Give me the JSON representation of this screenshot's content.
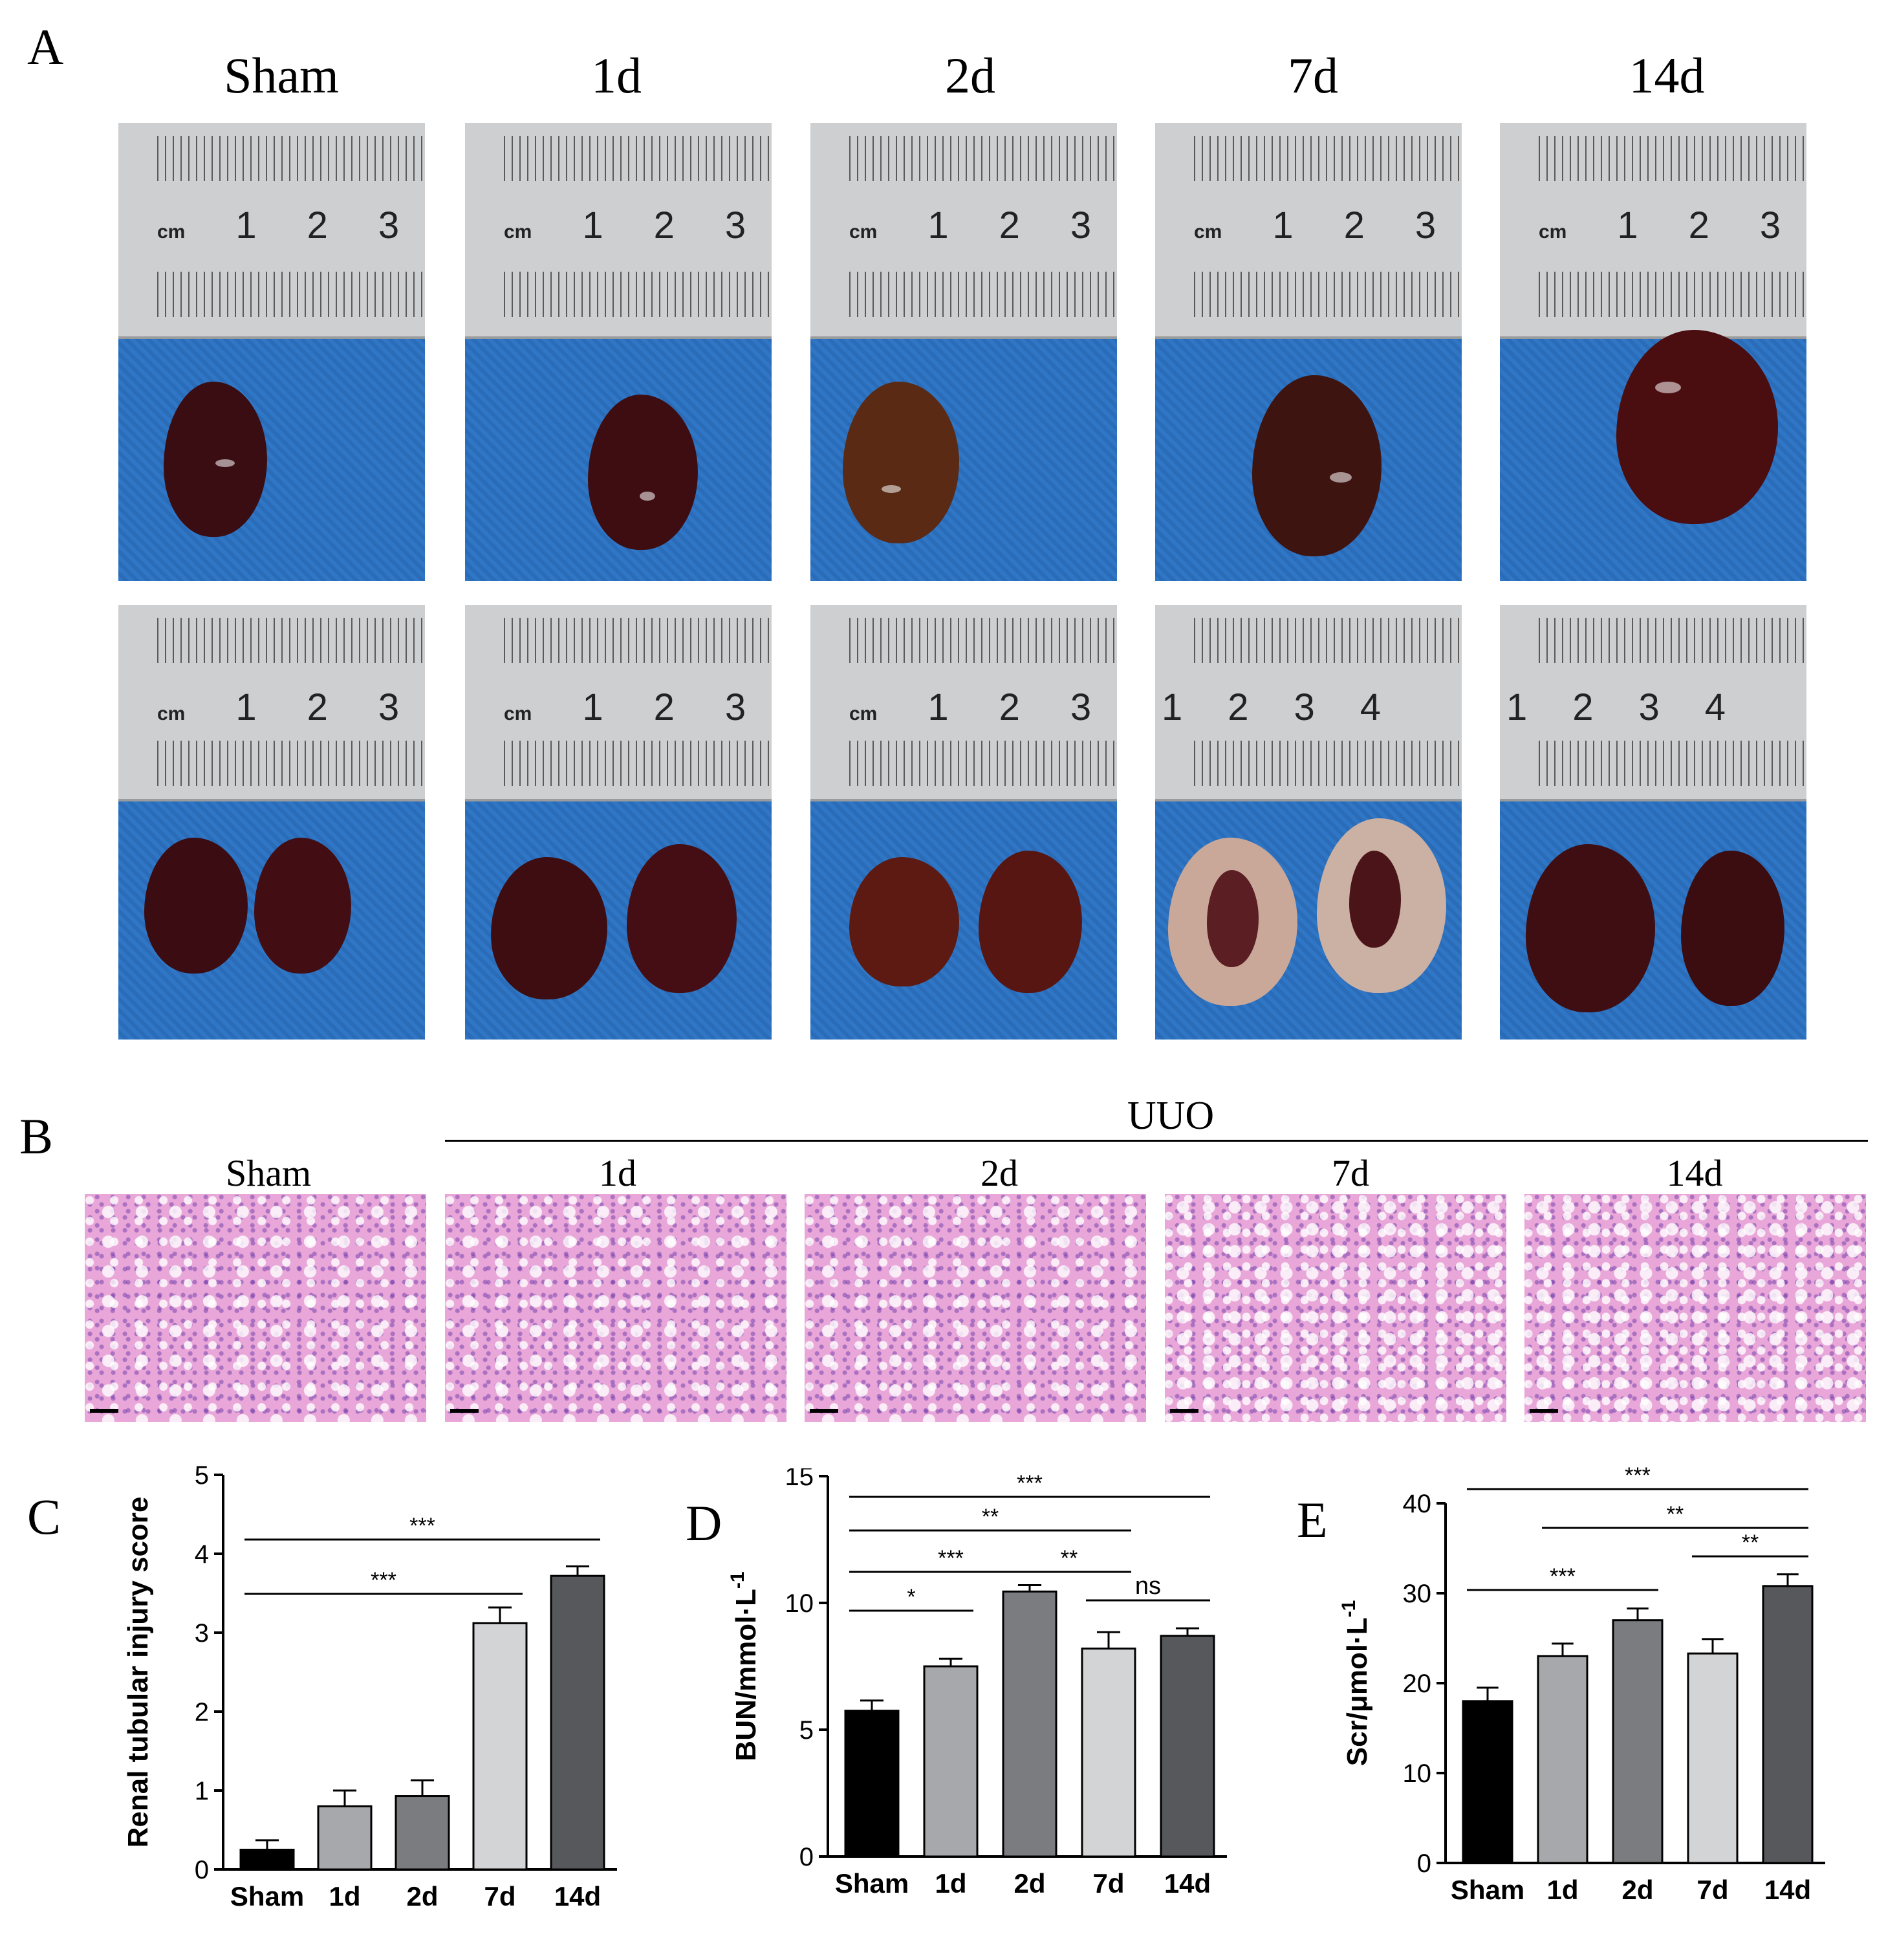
{
  "figure": {
    "panels": {
      "a": "A",
      "b": "B",
      "c": "C",
      "d": "D",
      "e": "E"
    },
    "panel_a": {
      "columns": [
        "Sham",
        "1d",
        "2d",
        "7d",
        "14d"
      ],
      "ruler_unit": "cm",
      "ruler_numbers_3": [
        "1",
        "2",
        "3"
      ],
      "ruler_numbers_4": [
        "1",
        "2",
        "3",
        "4"
      ]
    },
    "panel_b": {
      "group_label": "UUO",
      "columns": [
        "Sham",
        "1d",
        "2d",
        "7d",
        "14d"
      ]
    }
  },
  "colors": {
    "sham": "#000000",
    "d1": "#a7a8ac",
    "d2": "#7b7c80",
    "d7": "#d3d4d6",
    "d14": "#57585b",
    "drape_blue": "#2f77c6"
  },
  "chart_data": [
    {
      "id": "C",
      "type": "bar",
      "categories": [
        "Sham",
        "1d",
        "2d",
        "7d",
        "14d"
      ],
      "values": [
        0.25,
        0.8,
        0.93,
        3.12,
        3.72
      ],
      "errors": [
        0.12,
        0.2,
        0.2,
        0.2,
        0.12
      ],
      "ylabel": "Renal tubular injury score",
      "ylim": [
        0,
        5
      ],
      "yticks": [
        "0",
        "1",
        "2",
        "3",
        "4",
        "5"
      ],
      "significance": [
        {
          "from": "Sham",
          "to": "14d",
          "label": "***"
        },
        {
          "from": "Sham",
          "to": "7d",
          "label": "***"
        }
      ]
    },
    {
      "id": "D",
      "type": "bar",
      "categories": [
        "Sham",
        "1d",
        "2d",
        "7d",
        "14d"
      ],
      "values": [
        5.75,
        7.5,
        10.45,
        8.2,
        8.7
      ],
      "errors": [
        0.4,
        0.3,
        0.25,
        0.65,
        0.3
      ],
      "ylabel": "BUN/mmol·L",
      "ylabel_sup": "-1",
      "ylim": [
        0,
        15
      ],
      "yticks": [
        "0",
        "5",
        "10",
        "15"
      ],
      "significance": [
        {
          "from": "Sham",
          "to": "14d",
          "label": "***"
        },
        {
          "from": "Sham",
          "to": "7d",
          "label": "**"
        },
        {
          "from": "Sham",
          "to": "2d",
          "label": "***"
        },
        {
          "from": "2d",
          "to": "7d",
          "label": "**"
        },
        {
          "from": "Sham",
          "to": "1d",
          "label": "*"
        },
        {
          "from": "7d",
          "to": "14d",
          "label": "ns"
        }
      ]
    },
    {
      "id": "E",
      "type": "bar",
      "categories": [
        "Sham",
        "1d",
        "2d",
        "7d",
        "14d"
      ],
      "values": [
        18.0,
        23.0,
        27.0,
        23.3,
        30.8
      ],
      "errors": [
        1.5,
        1.4,
        1.3,
        1.6,
        1.3
      ],
      "ylabel": "Scr/μmol·L",
      "ylabel_sup": "-1",
      "ylim": [
        0,
        40
      ],
      "yticks": [
        "0",
        "10",
        "20",
        "30",
        "40"
      ],
      "significance": [
        {
          "from": "Sham",
          "to": "14d",
          "label": "***"
        },
        {
          "from": "1d",
          "to": "14d",
          "label": "**"
        },
        {
          "from": "7d",
          "to": "14d",
          "label": "**"
        },
        {
          "from": "Sham",
          "to": "2d",
          "label": "***"
        }
      ]
    }
  ]
}
